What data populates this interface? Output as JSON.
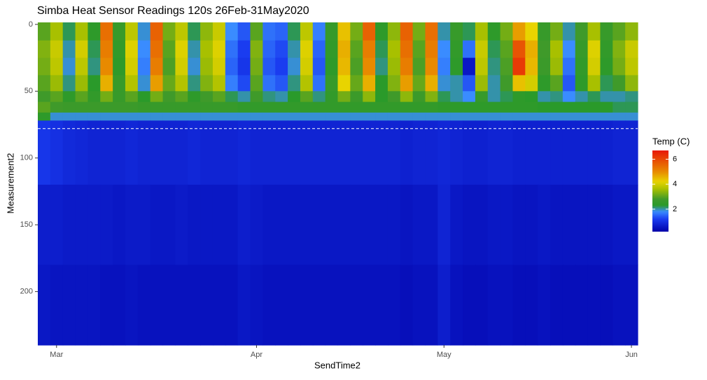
{
  "chart_data": {
    "type": "heatmap",
    "title": "Simba Heat Sensor Readings 120s 26Feb-31May2020",
    "x_label": "SendTime2",
    "y_label": "Measurement2",
    "categories": [
      null,
      "Mar",
      null,
      null,
      null,
      null,
      null,
      null,
      null,
      null,
      null,
      null,
      null,
      null,
      null,
      null,
      null,
      "Apr",
      null,
      null,
      null,
      null,
      null,
      null,
      null,
      null,
      null,
      null,
      null,
      null,
      null,
      null,
      "May",
      null,
      null,
      null,
      null,
      null,
      null,
      null,
      null,
      null,
      null,
      null,
      null,
      null,
      null,
      "Jun"
    ],
    "y_bins": [
      -1.5,
      12,
      25,
      38,
      50,
      58,
      66,
      72,
      120,
      180,
      240
    ],
    "ylim": [
      240,
      -1.5
    ],
    "yticks": [
      0,
      50,
      100,
      150,
      200
    ],
    "hline": 78,
    "values": [
      [
        3.0,
        3.6,
        2.2,
        3.6,
        2.4,
        5.4,
        2.6,
        3.8,
        1.9,
        5.6,
        3.2,
        3.8,
        2.2,
        3.4,
        3.9,
        1.8,
        1.4,
        3.0,
        1.6,
        1.5,
        2.2,
        3.8,
        1.7,
        2.6,
        4.4,
        3.2,
        5.6,
        2.4,
        3.4,
        5.6,
        3.2,
        5.4,
        2.0,
        2.6,
        2.2,
        3.6,
        2.4,
        3.2,
        4.8,
        4.2,
        2.6,
        3.2,
        2.0,
        2.8,
        3.6,
        2.6,
        3.0,
        3.4
      ],
      [
        3.3,
        3.9,
        2.0,
        4.0,
        2.2,
        5.2,
        2.5,
        4.1,
        1.8,
        5.4,
        3.0,
        4.1,
        2.0,
        3.6,
        4.1,
        1.6,
        1.2,
        3.3,
        1.5,
        1.3,
        2.0,
        4.1,
        1.5,
        2.5,
        4.6,
        3.0,
        5.2,
        2.2,
        3.6,
        5.4,
        3.0,
        5.2,
        1.8,
        2.5,
        1.6,
        3.9,
        2.2,
        3.0,
        5.8,
        4.6,
        2.8,
        3.6,
        1.8,
        2.6,
        4.1,
        2.5,
        3.3,
        3.9
      ],
      [
        3.2,
        3.8,
        1.9,
        3.8,
        2.1,
        5.0,
        2.4,
        4.0,
        1.7,
        5.2,
        2.9,
        4.0,
        1.9,
        3.5,
        4.0,
        1.5,
        1.1,
        3.2,
        1.4,
        1.2,
        1.9,
        4.0,
        1.4,
        2.4,
        4.5,
        2.9,
        5.0,
        2.1,
        3.5,
        5.2,
        2.9,
        5.0,
        1.7,
        2.4,
        0.6,
        3.8,
        2.1,
        2.9,
        6.2,
        4.5,
        2.7,
        3.5,
        1.6,
        2.5,
        4.0,
        2.4,
        3.2,
        3.8
      ],
      [
        3.0,
        3.5,
        2.1,
        3.5,
        2.3,
        4.6,
        2.6,
        3.7,
        1.9,
        4.8,
        3.1,
        3.7,
        2.1,
        3.3,
        3.7,
        1.7,
        1.3,
        3.0,
        1.6,
        1.4,
        2.1,
        3.7,
        1.6,
        2.6,
        4.2,
        3.1,
        4.6,
        2.3,
        3.3,
        4.8,
        3.1,
        4.6,
        1.9,
        2.0,
        1.4,
        3.5,
        2.0,
        2.8,
        4.4,
        4.0,
        2.4,
        3.0,
        1.4,
        2.4,
        3.6,
        2.2,
        2.8,
        3.4
      ],
      [
        2.8,
        3.0,
        2.4,
        3.0,
        2.5,
        3.2,
        2.6,
        3.0,
        2.3,
        3.2,
        2.8,
        3.0,
        2.4,
        2.8,
        3.0,
        2.2,
        2.0,
        2.8,
        2.1,
        2.0,
        2.3,
        3.0,
        2.1,
        2.5,
        3.2,
        2.7,
        3.4,
        2.3,
        2.8,
        3.4,
        2.7,
        3.3,
        2.2,
        2.0,
        1.8,
        2.6,
        2.0,
        2.2,
        2.4,
        2.3,
        2.0,
        2.1,
        1.8,
        2.0,
        2.2,
        2.0,
        2.0,
        2.1
      ],
      [
        3.0,
        2.8,
        2.7,
        2.7,
        2.7,
        2.7,
        2.7,
        2.7,
        2.6,
        2.6,
        2.6,
        2.6,
        2.6,
        2.6,
        2.6,
        2.6,
        2.5,
        2.5,
        2.5,
        2.5,
        2.5,
        2.5,
        2.5,
        2.5,
        2.5,
        2.5,
        2.5,
        2.5,
        2.5,
        2.5,
        2.5,
        2.5,
        2.4,
        2.4,
        2.4,
        2.4,
        2.4,
        2.4,
        2.4,
        2.4,
        2.3,
        2.3,
        2.3,
        2.3,
        2.3,
        2.3,
        2.2,
        2.2
      ],
      [
        2.4,
        1.9,
        1.9,
        1.9,
        1.9,
        1.9,
        1.9,
        1.9,
        1.9,
        1.9,
        1.9,
        1.9,
        1.9,
        1.9,
        1.9,
        1.9,
        1.9,
        1.9,
        1.9,
        1.9,
        1.9,
        1.9,
        1.9,
        1.9,
        1.9,
        1.9,
        1.9,
        1.9,
        1.9,
        1.9,
        1.9,
        1.9,
        1.9,
        1.9,
        1.9,
        1.9,
        1.9,
        1.9,
        1.9,
        1.9,
        1.9,
        1.9,
        1.9,
        1.9,
        1.9,
        1.9,
        1.9,
        1.9
      ],
      [
        1.1,
        1.0,
        0.9,
        0.85,
        0.8,
        0.8,
        0.8,
        0.85,
        0.8,
        0.8,
        0.8,
        0.8,
        0.85,
        0.8,
        0.8,
        0.8,
        0.85,
        0.8,
        0.8,
        0.8,
        0.8,
        0.8,
        0.8,
        0.8,
        0.8,
        0.8,
        0.8,
        0.8,
        0.8,
        0.75,
        0.8,
        0.8,
        0.85,
        0.8,
        0.75,
        0.75,
        0.8,
        0.8,
        0.75,
        0.75,
        0.75,
        0.75,
        0.75,
        0.75,
        0.75,
        0.75,
        0.8,
        0.8
      ],
      [
        0.7,
        0.7,
        0.65,
        0.65,
        0.65,
        0.65,
        0.6,
        0.65,
        0.65,
        0.6,
        0.6,
        0.65,
        0.6,
        0.6,
        0.6,
        0.6,
        0.7,
        0.65,
        0.6,
        0.6,
        0.6,
        0.6,
        0.6,
        0.6,
        0.6,
        0.6,
        0.6,
        0.6,
        0.6,
        0.55,
        0.6,
        0.6,
        0.8,
        0.6,
        0.55,
        0.55,
        0.6,
        0.6,
        0.55,
        0.55,
        0.6,
        0.55,
        0.55,
        0.55,
        0.55,
        0.55,
        0.6,
        0.6
      ],
      [
        0.6,
        0.55,
        0.55,
        0.55,
        0.55,
        0.5,
        0.5,
        0.55,
        0.5,
        0.5,
        0.5,
        0.5,
        0.5,
        0.5,
        0.5,
        0.5,
        0.6,
        0.55,
        0.5,
        0.5,
        0.5,
        0.5,
        0.5,
        0.5,
        0.5,
        0.5,
        0.5,
        0.5,
        0.5,
        0.45,
        0.5,
        0.5,
        0.7,
        0.5,
        0.45,
        0.45,
        0.5,
        0.5,
        0.45,
        0.45,
        0.5,
        0.45,
        0.45,
        0.45,
        0.45,
        0.45,
        0.5,
        0.5
      ]
    ],
    "colorscale": [
      [
        0.2,
        "#0000a8"
      ],
      [
        1.2,
        "#1a3cf0"
      ],
      [
        1.8,
        "#3a8cff"
      ],
      [
        2.3,
        "#2a9a2a"
      ],
      [
        2.8,
        "#3f9a2a"
      ],
      [
        3.6,
        "#a8c000"
      ],
      [
        4.2,
        "#e8d400"
      ],
      [
        5.0,
        "#e88a00"
      ],
      [
        6.7,
        "#e81808"
      ]
    ],
    "legend": {
      "title": "Temp (C)",
      "lim": [
        0.2,
        6.7
      ],
      "ticks": [
        2,
        4,
        6
      ]
    }
  }
}
